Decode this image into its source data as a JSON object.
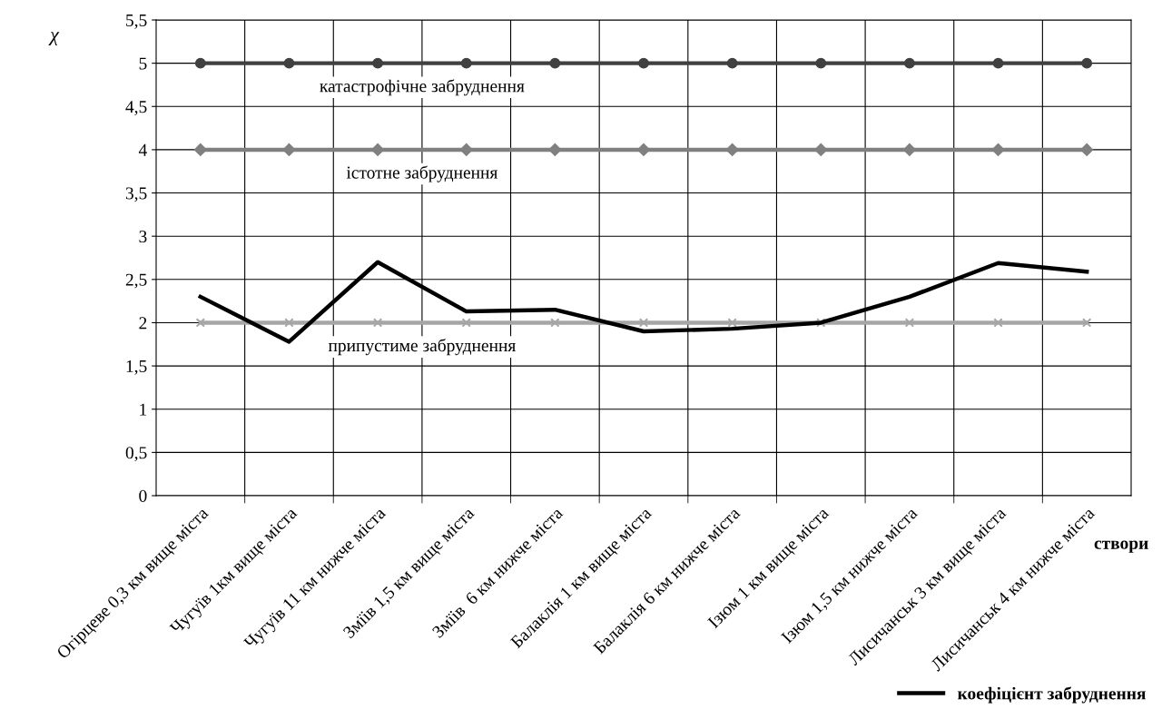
{
  "chart_data": {
    "type": "line",
    "xlabel": "створи",
    "ylabel": "χ",
    "categories": [
      "Огірцеве 0,3 км вище міста",
      "Чугуїв 1км вище міста",
      "Чугуїв 11 км нижче міста",
      "Змїів 1,5 км вище міста",
      "Змїів  6 км нижче міста",
      "Балаклія 1 км вище міста",
      "Балаклія 6 км нижче міста",
      "Ізюм 1 км вище міста",
      "Ізюм 1,5 км нижче міста",
      "Лисичанськ 3 км вище міста",
      "Лисичанськ 4 км нижче міста"
    ],
    "series": [
      {
        "name": "катастрофічне забруднення",
        "color": "#404040",
        "marker": "circle",
        "values": [
          5,
          5,
          5,
          5,
          5,
          5,
          5,
          5,
          5,
          5,
          5
        ]
      },
      {
        "name": "істотне забруднення",
        "color": "#808080",
        "marker": "diamond",
        "values": [
          4,
          4,
          4,
          4,
          4,
          4,
          4,
          4,
          4,
          4,
          4
        ]
      },
      {
        "name": "припустиме забруднення",
        "color": "#a6a6a6",
        "marker": "cross",
        "values": [
          2,
          2,
          2,
          2,
          2,
          2,
          2,
          2,
          2,
          2,
          2
        ]
      },
      {
        "name": "коефіцієнт забруднення",
        "color": "#000000",
        "marker": "none",
        "values": [
          2.3,
          1.78,
          2.7,
          2.13,
          2.15,
          1.9,
          1.93,
          2.0,
          2.3,
          2.69,
          2.59
        ]
      }
    ],
    "ylim": [
      0,
      5.5
    ],
    "yticks": [
      0,
      {
        "value": 0.5,
        "label": "0,5"
      },
      1,
      {
        "value": 1.5,
        "label": "1,5"
      },
      2,
      {
        "value": 2.5,
        "label": "2,5"
      },
      3,
      {
        "value": 3.5,
        "label": "3,5"
      },
      4,
      {
        "value": 4.5,
        "label": "4,5"
      },
      5,
      {
        "value": 5.5,
        "label": "5,5"
      }
    ],
    "grid": true,
    "legend": "bottom right"
  }
}
